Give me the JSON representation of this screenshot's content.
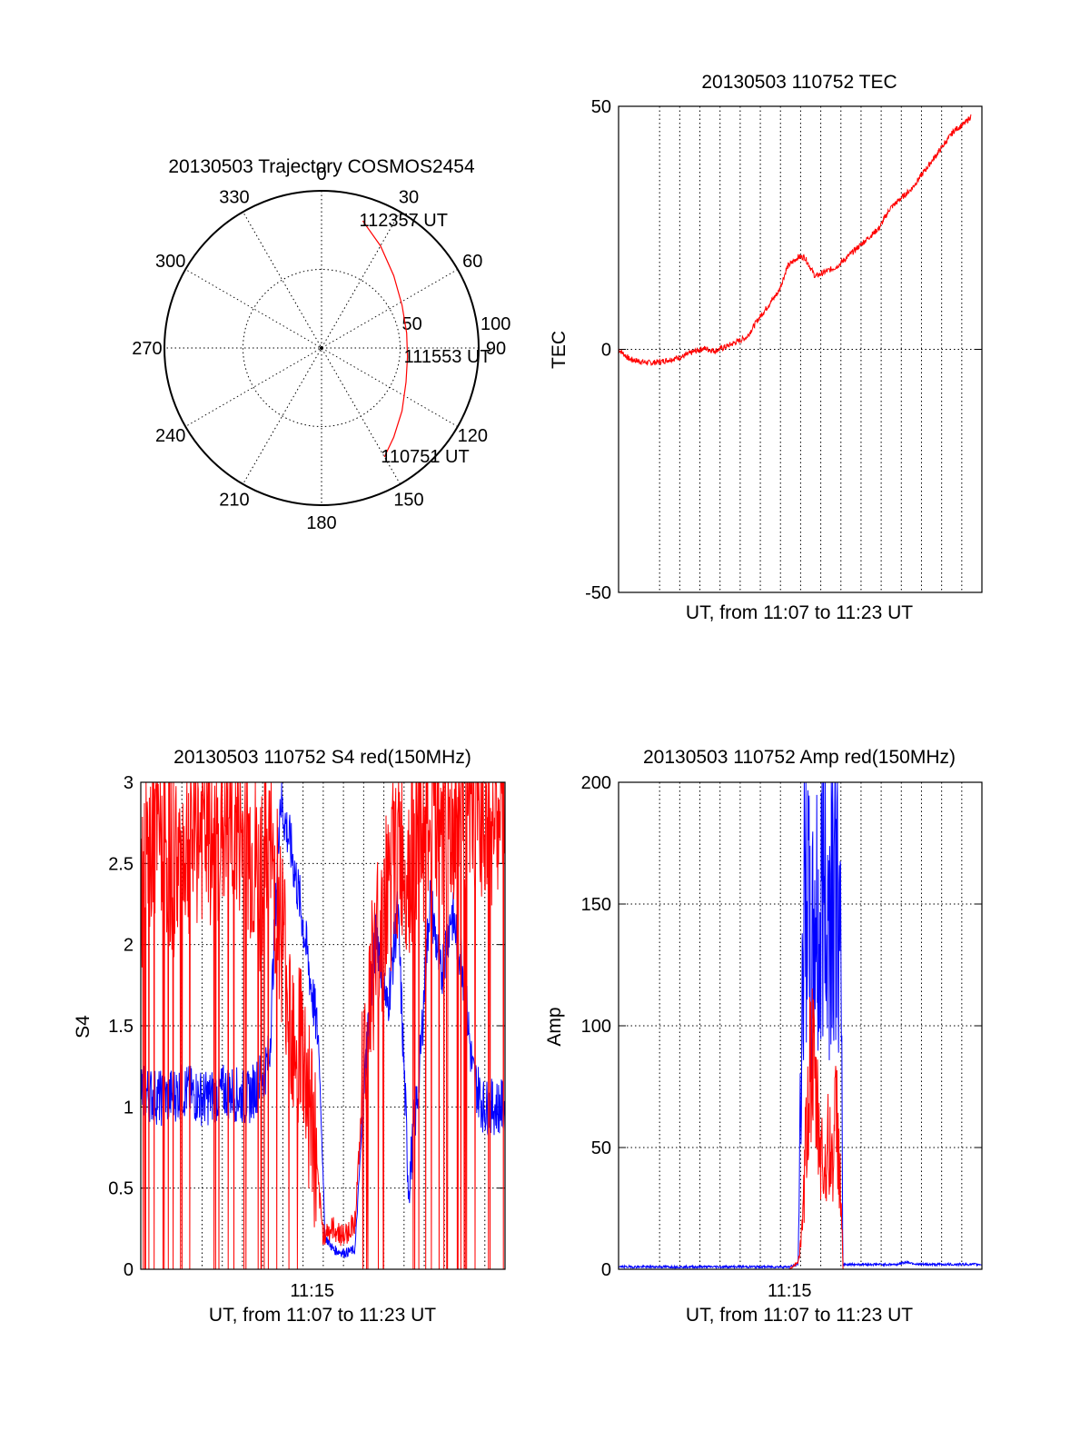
{
  "colors": {
    "red": "#ff0000",
    "blue": "#0000ff",
    "axis": "#000000"
  },
  "chart_data": [
    {
      "id": "trajectory",
      "type": "polar",
      "title": "20130503 Trajectory COSMOS2454",
      "angle_labels": [
        "0",
        "30",
        "60",
        "90",
        "120",
        "150",
        "180",
        "210",
        "240",
        "270",
        "300",
        "330"
      ],
      "radius_labels": [
        "50",
        "100"
      ],
      "r_max": 100,
      "track": {
        "color": "red",
        "points": [
          {
            "az": 18,
            "r": 85
          },
          {
            "az": 30,
            "r": 75
          },
          {
            "az": 45,
            "r": 65
          },
          {
            "az": 62,
            "r": 58
          },
          {
            "az": 80,
            "r": 55
          },
          {
            "az": 96,
            "r": 55
          },
          {
            "az": 112,
            "r": 58
          },
          {
            "az": 128,
            "r": 65
          },
          {
            "az": 141,
            "r": 73
          },
          {
            "az": 150,
            "r": 80
          }
        ]
      },
      "annotations": [
        {
          "text": "112357 UT",
          "az": 18,
          "r": 85
        },
        {
          "text": "111553 UT",
          "az": 96,
          "r": 55
        },
        {
          "text": "110751 UT",
          "az": 150,
          "r": 80
        }
      ]
    },
    {
      "id": "tec",
      "type": "line",
      "title": "20130503 110752 TEC",
      "ylabel": "TEC",
      "xlabel": "UT, from 11:07 to 11:23 UT",
      "xlim": [
        0,
        17
      ],
      "ylim": [
        -50,
        50
      ],
      "yticks": [
        "-50",
        "0",
        "50"
      ],
      "xticks": [],
      "gridlines_x": 17,
      "series": [
        {
          "name": "TEC",
          "color": "red",
          "x": [
            0.0,
            0.5,
            1.0,
            1.5,
            2.0,
            2.5,
            3.0,
            3.5,
            4.0,
            4.5,
            5.0,
            5.5,
            6.0,
            6.5,
            7.0,
            7.5,
            7.9,
            8.4,
            8.7,
            9.2,
            9.7,
            10.2,
            10.7,
            11.2,
            11.7,
            12.2,
            12.7,
            13.2,
            13.7,
            14.2,
            14.7,
            15.2,
            15.7,
            16.2,
            16.5
          ],
          "y": [
            0,
            -2,
            -2.5,
            -2.8,
            -2.5,
            -2.0,
            -1.5,
            -0.5,
            0.2,
            -0.3,
            0.5,
            1.5,
            2.5,
            6,
            9,
            12,
            17,
            19,
            19,
            15,
            16,
            17,
            19,
            21,
            23,
            25,
            29,
            31,
            33,
            36,
            39,
            42,
            45,
            46.5,
            48
          ]
        }
      ]
    },
    {
      "id": "s4",
      "type": "line",
      "title": "20130503 110752 S4 red(150MHz)",
      "ylabel": "S4",
      "xlabel": "UT, from 11:07 to 11:23 UT",
      "xlim": [
        0,
        17
      ],
      "ylim": [
        0,
        3
      ],
      "yticks": [
        "0",
        "0.5",
        "1",
        "1.5",
        "2",
        "2.5",
        "3"
      ],
      "xticks": [
        {
          "label": "11:15",
          "x": 8
        }
      ],
      "gridlines_x": 17,
      "series": [
        {
          "name": "S4 blue",
          "color": "blue",
          "x": [
            0,
            1,
            2,
            3,
            4,
            5,
            5.5,
            6,
            6.5,
            7,
            7.5,
            8,
            8.3,
            8.6,
            9,
            9.5,
            10,
            10.5,
            11,
            11.5,
            12,
            12.5,
            13,
            13.5,
            14,
            14.5,
            15,
            15.5,
            16,
            16.5,
            17
          ],
          "y": [
            1.1,
            1.05,
            1.1,
            1.05,
            1.1,
            1.05,
            1.15,
            1.3,
            2.9,
            2.6,
            2.2,
            1.7,
            1.4,
            0.2,
            0.12,
            0.1,
            0.12,
            1.3,
            2.1,
            1.6,
            2.2,
            0.5,
            1.2,
            2.3,
            1.8,
            2.2,
            1.9,
            1.2,
            1.0,
            1.0,
            1.0
          ]
        },
        {
          "name": "S4 red",
          "color": "red",
          "x": [
            0,
            0.5,
            1,
            1.5,
            2,
            2.5,
            3,
            3.5,
            4,
            4.5,
            5,
            5.5,
            6,
            6.5,
            7,
            7.5,
            8,
            8.5,
            9,
            9.5,
            10,
            10.5,
            11,
            11.5,
            12,
            12.5,
            13,
            13.5,
            14,
            14.5,
            15,
            15.5,
            16,
            16.5,
            17
          ],
          "y": [
            2.4,
            2.6,
            2.7,
            2.5,
            2.6,
            2.7,
            2.7,
            2.6,
            2.8,
            2.7,
            2.6,
            2.4,
            2.6,
            2.2,
            1.6,
            1.4,
            0.9,
            0.22,
            0.25,
            0.2,
            0.3,
            1.4,
            2.0,
            2.3,
            2.6,
            2.5,
            2.7,
            2.8,
            2.8,
            2.7,
            2.9,
            2.8,
            2.9,
            2.8,
            2.9
          ]
        }
      ]
    },
    {
      "id": "amp",
      "type": "line",
      "title": "20130503 110752 Amp red(150MHz)",
      "ylabel": "Amp",
      "xlabel": "UT, from 11:07 to 11:23 UT",
      "xlim": [
        0,
        17
      ],
      "ylim": [
        0,
        200
      ],
      "yticks": [
        "0",
        "50",
        "100",
        "150",
        "200"
      ],
      "xticks": [
        {
          "label": "11:15",
          "x": 8
        }
      ],
      "gridlines_x": 17,
      "series": [
        {
          "name": "Amp blue",
          "color": "blue",
          "x": [
            0,
            2,
            4,
            6,
            8,
            8.4,
            8.6,
            8.8,
            9.0,
            9.2,
            9.4,
            9.6,
            9.8,
            10.0,
            10.2,
            10.4,
            10.5,
            11,
            12,
            13,
            13.5,
            14,
            15,
            16,
            17
          ],
          "y": [
            1,
            1,
            1,
            1,
            1,
            2,
            120,
            170,
            110,
            150,
            130,
            170,
            140,
            175,
            160,
            120,
            2,
            2,
            2,
            2,
            3,
            2,
            2,
            2,
            2
          ]
        },
        {
          "name": "Amp red",
          "color": "red",
          "x": [
            8.0,
            8.4,
            8.6,
            8.8,
            9.0,
            9.2,
            9.4,
            9.6,
            9.8,
            10.0,
            10.2,
            10.4,
            10.5
          ],
          "y": [
            0,
            3,
            15,
            60,
            90,
            70,
            55,
            40,
            50,
            45,
            65,
            30,
            0
          ]
        }
      ]
    }
  ]
}
